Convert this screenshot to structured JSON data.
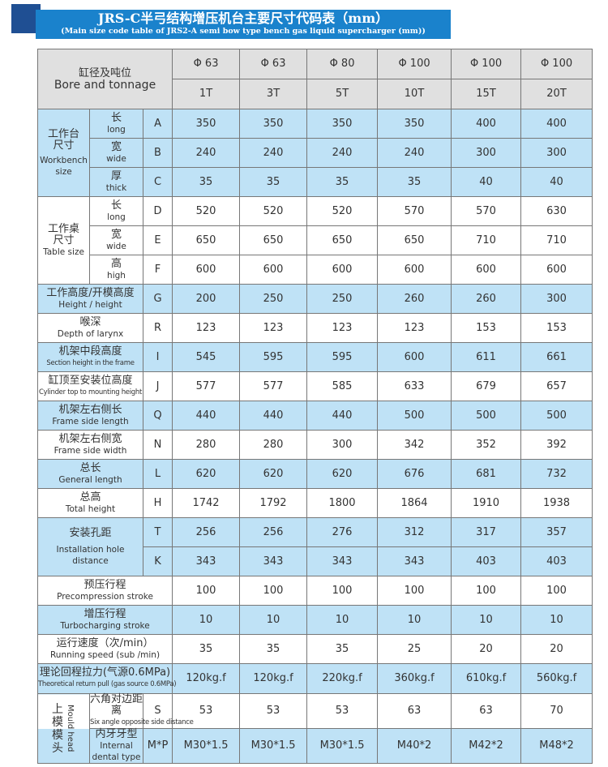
{
  "title": {
    "zh": "JRS-C半弓结构增压机台主要尺寸代码表（mm）",
    "en": "(Main size code table of JRS2-A semi bow type bench gas liquid supercharger (mm))"
  },
  "header": {
    "label_zh": "缸径及吨位",
    "label_en": "Bore and tonnage",
    "bores": [
      "Φ 63",
      "Φ 63",
      "Φ 80",
      "Φ 100",
      "Φ 100",
      "Φ 100"
    ],
    "tonnage": [
      "1T",
      "3T",
      "5T",
      "10T",
      "15T",
      "20T"
    ]
  },
  "groups": {
    "workbench": {
      "zh1": "工作台",
      "zh2": "尺寸",
      "en1": "Workbench",
      "en2": "size"
    },
    "table": {
      "zh1": "工作桌",
      "zh2": "尺寸",
      "en": "Table size"
    },
    "install": {
      "zh": "安装孔距",
      "en": "Installation hole distance"
    },
    "mould": {
      "zh": "上模模头",
      "en": "Mould head"
    }
  },
  "rows": [
    {
      "zh": "长",
      "en": "long",
      "code": "A",
      "values": [
        "350",
        "350",
        "350",
        "350",
        "400",
        "400"
      ]
    },
    {
      "zh": "宽",
      "en": "wide",
      "code": "B",
      "values": [
        "240",
        "240",
        "240",
        "240",
        "300",
        "300"
      ]
    },
    {
      "zh": "厚",
      "en": "thick",
      "code": "C",
      "values": [
        "35",
        "35",
        "35",
        "35",
        "40",
        "40"
      ]
    },
    {
      "zh": "长",
      "en": "long",
      "code": "D",
      "values": [
        "520",
        "520",
        "520",
        "570",
        "570",
        "630"
      ]
    },
    {
      "zh": "宽",
      "en": "wide",
      "code": "E",
      "values": [
        "650",
        "650",
        "650",
        "650",
        "710",
        "710"
      ]
    },
    {
      "zh": "高",
      "en": "high",
      "code": "F",
      "values": [
        "600",
        "600",
        "600",
        "600",
        "600",
        "600"
      ]
    },
    {
      "zh": "工作高度/开模高度",
      "en": "Height / height",
      "code": "G",
      "values": [
        "200",
        "250",
        "250",
        "260",
        "260",
        "300"
      ]
    },
    {
      "zh": "喉深",
      "en": "Depth of larynx",
      "code": "R",
      "values": [
        "123",
        "123",
        "123",
        "123",
        "153",
        "153"
      ]
    },
    {
      "zh": "机架中段高度",
      "en": "Section height in the frame",
      "code": "I",
      "values": [
        "545",
        "595",
        "595",
        "600",
        "611",
        "661"
      ]
    },
    {
      "zh": "缸顶至安装位高度",
      "en": "Cylinder top to mounting height",
      "code": "J",
      "values": [
        "577",
        "577",
        "585",
        "633",
        "679",
        "657"
      ]
    },
    {
      "zh": "机架左右侧长",
      "en": "Frame side length",
      "code": "Q",
      "values": [
        "440",
        "440",
        "440",
        "500",
        "500",
        "500"
      ]
    },
    {
      "zh": "机架左右侧宽",
      "en": "Frame side width",
      "code": "N",
      "values": [
        "280",
        "280",
        "300",
        "342",
        "352",
        "392"
      ]
    },
    {
      "zh": "总长",
      "en": "General length",
      "code": "L",
      "values": [
        "620",
        "620",
        "620",
        "676",
        "681",
        "732"
      ]
    },
    {
      "zh": "总高",
      "en": "Total height",
      "code": "H",
      "values": [
        "1742",
        "1792",
        "1800",
        "1864",
        "1910",
        "1938"
      ]
    },
    {
      "code": "T",
      "values": [
        "256",
        "256",
        "276",
        "312",
        "317",
        "357"
      ]
    },
    {
      "code": "K",
      "values": [
        "343",
        "343",
        "343",
        "343",
        "403",
        "403"
      ]
    },
    {
      "zh": "预压行程",
      "en": "Precompression stroke",
      "values": [
        "100",
        "100",
        "100",
        "100",
        "100",
        "100"
      ]
    },
    {
      "zh": "增压行程",
      "en": "Turbocharging stroke",
      "values": [
        "10",
        "10",
        "10",
        "10",
        "10",
        "10"
      ]
    },
    {
      "zh": "运行速度（次/min）",
      "en": "Running speed (sub /min)",
      "values": [
        "35",
        "35",
        "35",
        "25",
        "20",
        "20"
      ]
    },
    {
      "zh": "理论回程拉力(气源0.6MPa)",
      "en": "Theoretical return pull (gas source 0.6MPa)",
      "values": [
        "120kg.f",
        "120kg.f",
        "220kg.f",
        "360kg.f",
        "610kg.f",
        "560kg.f"
      ]
    },
    {
      "zh": "六角对边距离",
      "en": "Six angle opposite side distance",
      "code": "S",
      "values": [
        "53",
        "53",
        "53",
        "63",
        "63",
        "70"
      ]
    },
    {
      "zh": "内牙牙型",
      "en": "Internal dental type",
      "code": "M*P",
      "values": [
        "M30*1.5",
        "M30*1.5",
        "M30*1.5",
        "M40*2",
        "M42*2",
        "M48*2"
      ]
    }
  ],
  "colors": {
    "banner": "#1a82cc",
    "row_blue": "#bfe2f6",
    "header_gray": "#e0e0e0"
  }
}
